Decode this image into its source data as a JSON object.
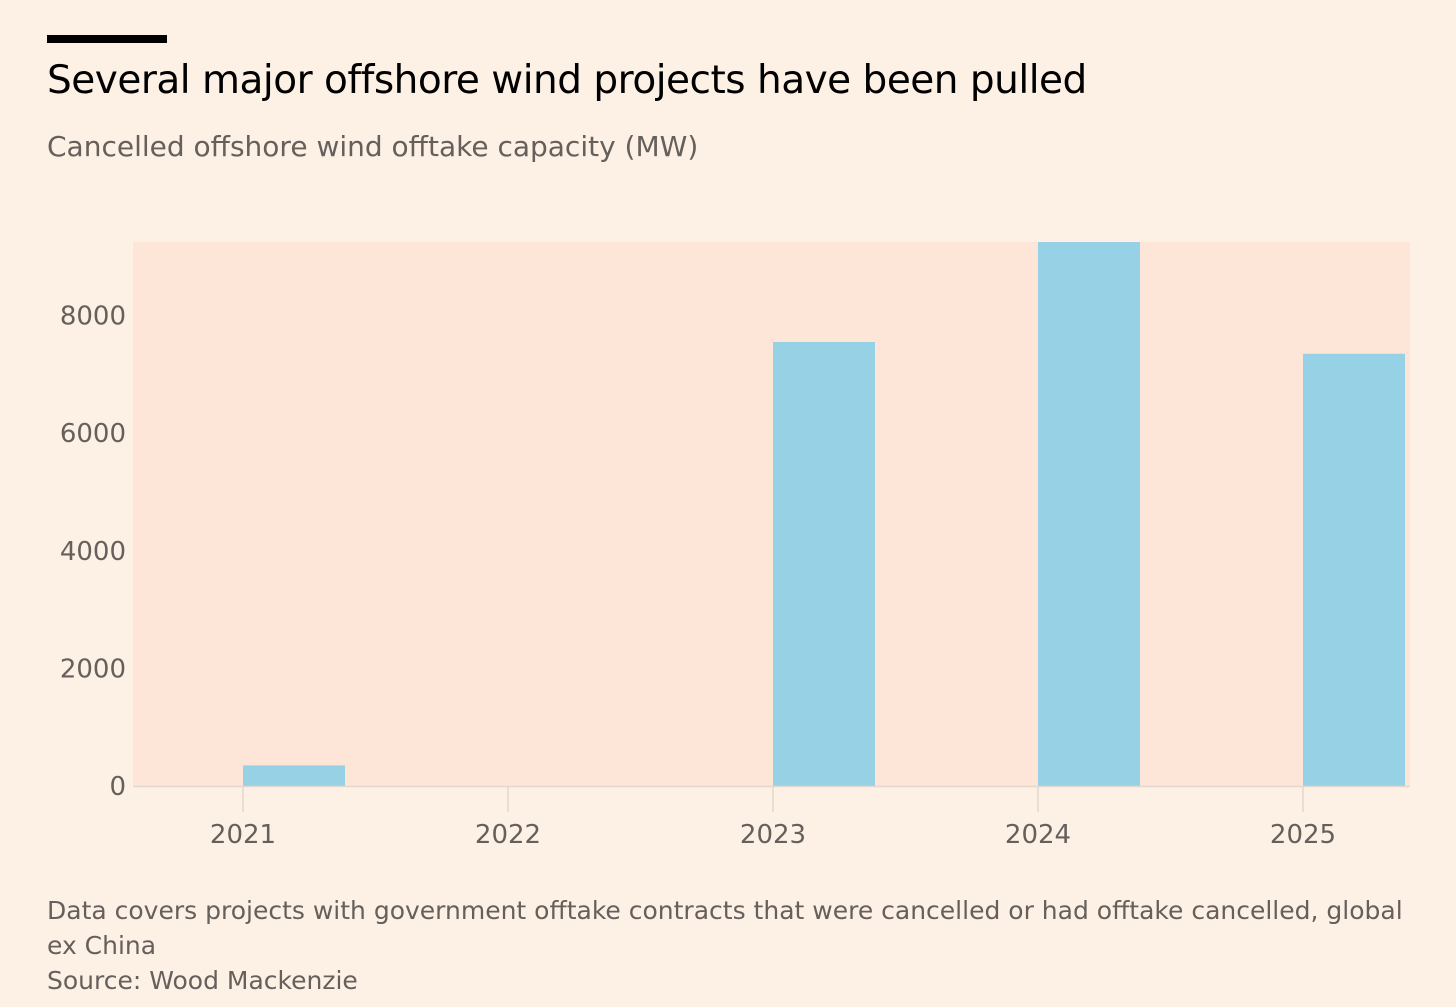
{
  "colors": {
    "background": "#fdf1e6",
    "plot_background": "#fde6d7",
    "bar": "#96d1e6",
    "text_muted": "#66605c",
    "title": "#000000"
  },
  "header": {
    "title": "Several major offshore wind projects have been pulled",
    "subtitle": "Cancelled offshore wind offtake capacity (MW)"
  },
  "footer": {
    "note": "Data covers projects with government offtake contracts that were cancelled or had offtake cancelled, global ex China",
    "source": "Source: Wood Mackenzie"
  },
  "chart_data": {
    "type": "bar",
    "categories": [
      "2021",
      "2022",
      "2023",
      "2024",
      "2025"
    ],
    "values": [
      350,
      0,
      7550,
      9250,
      7350
    ],
    "yticks": [
      0,
      2000,
      4000,
      6000,
      8000
    ],
    "ylim": [
      0,
      9250
    ],
    "grid": false
  }
}
